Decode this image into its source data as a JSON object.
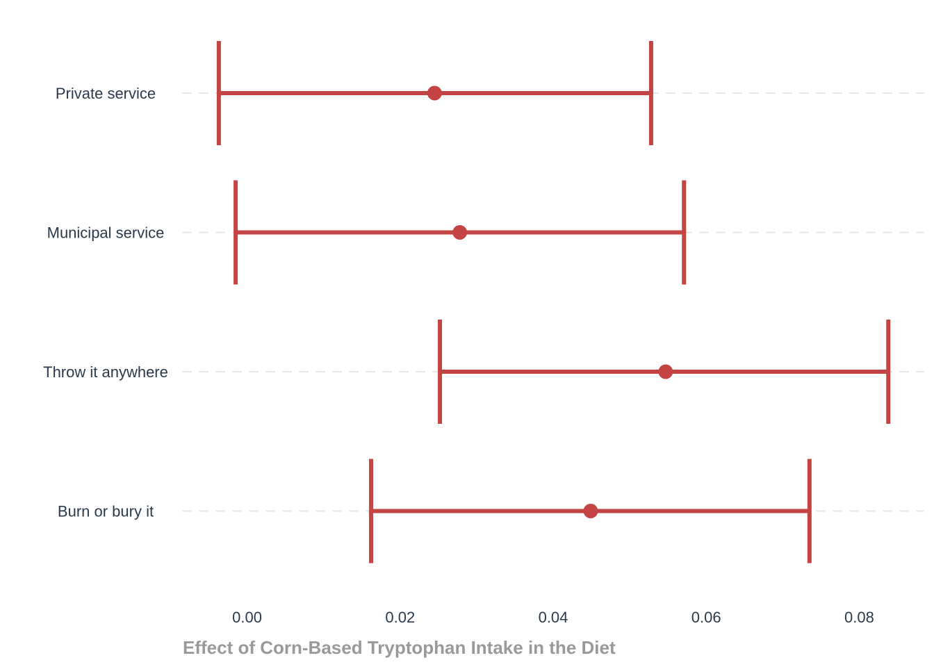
{
  "chart_data": {
    "type": "errorbar",
    "orientation": "horizontal",
    "xlabel": "Effect of Corn-Based Tryptophan Intake in the Diet",
    "ylabel": "",
    "xlim": [
      -0.0085,
      0.0885
    ],
    "xticks": [
      0.0,
      0.02,
      0.04,
      0.06,
      0.08
    ],
    "xtick_labels": [
      "0.00",
      "0.02",
      "0.04",
      "0.06",
      "0.08"
    ],
    "categories": [
      "Private service",
      "Municipal service",
      "Throw it anywhere",
      "Burn or bury it"
    ],
    "estimates": [
      0.0245,
      0.0278,
      0.0547,
      0.0449
    ],
    "lower": [
      -0.0037,
      -0.0015,
      0.0252,
      0.0162
    ],
    "upper": [
      0.0528,
      0.0571,
      0.0838,
      0.0735
    ],
    "grid": "horizontal dashed",
    "legend": "none",
    "colors": {
      "marker": "#c44444",
      "grid": "#e6e6e6",
      "axis_title": "#999999",
      "text": "#2b3a4a"
    }
  }
}
